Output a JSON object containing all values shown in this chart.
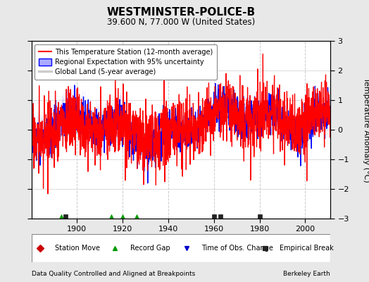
{
  "title": "WESTMINSTER-POLICE-B",
  "subtitle": "39.600 N, 77.000 W (United States)",
  "ylabel": "Temperature Anomaly (°C)",
  "xlabel_left": "Data Quality Controlled and Aligned at Breakpoints",
  "xlabel_right": "Berkeley Earth",
  "ylim": [
    -3,
    3
  ],
  "xlim": [
    1880,
    2011
  ],
  "xticks": [
    1900,
    1920,
    1940,
    1960,
    1980,
    2000
  ],
  "yticks": [
    -3,
    -2,
    -1,
    0,
    1,
    2,
    3
  ],
  "background_color": "#e8e8e8",
  "plot_bg_color": "#ffffff",
  "grid_color": "#cccccc",
  "station_color": "#ff0000",
  "regional_color": "#0000ff",
  "regional_fill_color": "#aaaaff",
  "global_color": "#bbbbbb",
  "record_gaps": [
    1893,
    1915,
    1920,
    1926
  ],
  "empirical_breaks": [
    1895,
    1960,
    1963,
    1980
  ]
}
